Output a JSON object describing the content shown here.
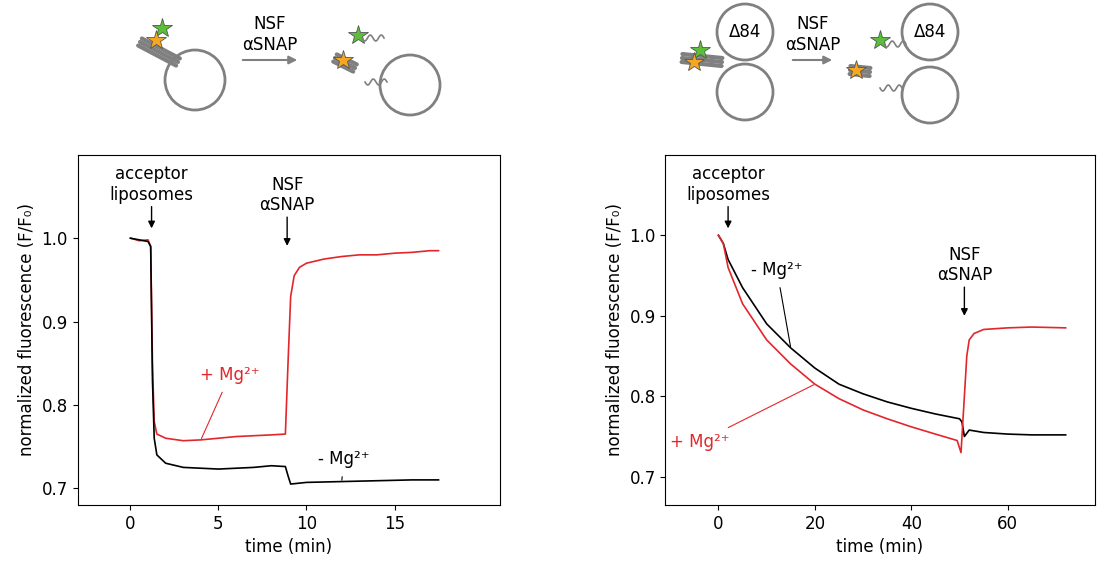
{
  "chart_data": [
    {
      "type": "line",
      "xlabel": "time (min)",
      "ylabel": "normalized fluorescence (F/F₀)",
      "xlim": [
        -3,
        21
      ],
      "xticks": [
        0,
        5,
        10,
        15
      ],
      "ylim": [
        0.68,
        1.1
      ],
      "yticks": [
        0.7,
        0.8,
        0.9,
        1.0
      ],
      "annotations": [
        {
          "text": "acceptor\nliposomes",
          "x": 1.2
        },
        {
          "text": "NSF\nαSNAP",
          "x": 8.9
        }
      ],
      "schematic": {
        "arrow_label": "NSF\nαSNAP"
      },
      "series": [
        {
          "name": "+ Mg²⁺",
          "color": "#e3262b",
          "x": [
            0,
            0.5,
            1.0,
            1.15,
            1.25,
            1.35,
            1.5,
            2,
            3,
            4,
            5,
            6,
            7,
            8,
            8.8,
            8.95,
            9.1,
            9.3,
            9.6,
            10,
            11,
            12,
            13,
            14,
            15,
            16,
            17,
            17.5
          ],
          "values": [
            1.0,
            0.997,
            0.998,
            0.99,
            0.85,
            0.78,
            0.765,
            0.76,
            0.757,
            0.758,
            0.76,
            0.762,
            0.763,
            0.764,
            0.765,
            0.85,
            0.93,
            0.955,
            0.965,
            0.97,
            0.975,
            0.978,
            0.98,
            0.98,
            0.982,
            0.983,
            0.985,
            0.985
          ]
        },
        {
          "name": "- Mg²⁺",
          "color": "#000000",
          "x": [
            0,
            0.5,
            1.0,
            1.15,
            1.25,
            1.35,
            1.5,
            2,
            3,
            4,
            5,
            6,
            7,
            8,
            8.8,
            8.95,
            9.1,
            10,
            12,
            14,
            16,
            17.5
          ],
          "values": [
            1.0,
            0.998,
            0.996,
            0.99,
            0.83,
            0.76,
            0.74,
            0.73,
            0.725,
            0.724,
            0.723,
            0.724,
            0.725,
            0.727,
            0.726,
            0.715,
            0.705,
            0.707,
            0.708,
            0.709,
            0.71,
            0.71
          ]
        }
      ]
    },
    {
      "type": "line",
      "xlabel": "time (min)",
      "ylabel": "normalized fluorescence (F/F₀)",
      "xlim": [
        -11,
        78
      ],
      "xticks": [
        0,
        20,
        40,
        60
      ],
      "ylim": [
        0.665,
        1.1
      ],
      "yticks": [
        0.7,
        0.8,
        0.9,
        1.0
      ],
      "annotations": [
        {
          "text": "acceptor\nliposomes",
          "x": 2
        },
        {
          "text": "NSF\nαSNAP",
          "x": 51
        }
      ],
      "schematic": {
        "arrow_label": "NSF\nαSNAP",
        "vesicle_label": "Δ84"
      },
      "series": [
        {
          "name": "- Mg²⁺",
          "color": "#000000",
          "x": [
            0,
            1,
            2,
            5,
            10,
            15,
            20,
            25,
            30,
            35,
            40,
            45,
            50,
            50.5,
            51,
            52,
            55,
            60,
            65,
            72
          ],
          "values": [
            1.0,
            0.99,
            0.97,
            0.935,
            0.89,
            0.86,
            0.835,
            0.815,
            0.803,
            0.793,
            0.785,
            0.778,
            0.772,
            0.768,
            0.75,
            0.758,
            0.755,
            0.753,
            0.752,
            0.752
          ]
        },
        {
          "name": "+ Mg²⁺",
          "color": "#e3262b",
          "x": [
            0,
            1,
            2,
            5,
            10,
            15,
            20,
            25,
            30,
            35,
            40,
            45,
            49.5,
            50.3,
            51,
            51.5,
            52,
            53,
            55,
            60,
            65,
            72
          ],
          "values": [
            1.0,
            0.99,
            0.96,
            0.915,
            0.87,
            0.84,
            0.815,
            0.797,
            0.783,
            0.772,
            0.762,
            0.753,
            0.745,
            0.73,
            0.8,
            0.85,
            0.87,
            0.878,
            0.883,
            0.885,
            0.886,
            0.885
          ]
        }
      ]
    }
  ]
}
